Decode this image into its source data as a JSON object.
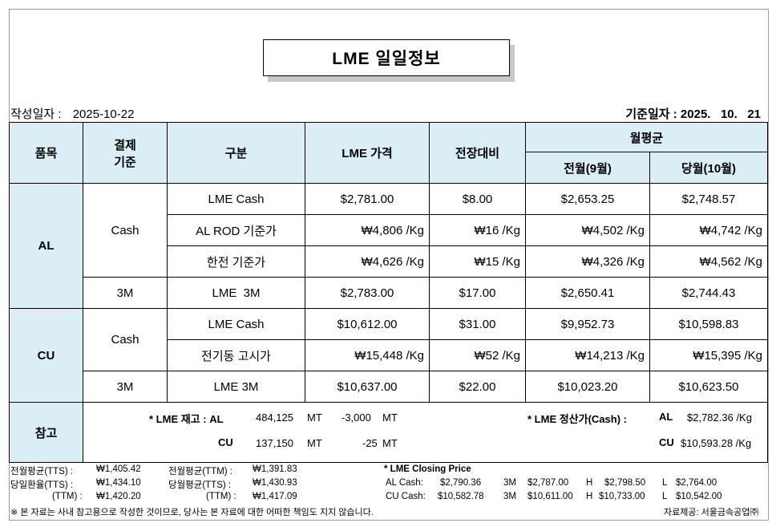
{
  "title": "LME 일일정보",
  "written_date_label": "작성일자 :",
  "written_date": "2025-10-22",
  "base_date_label": "기준일자 :",
  "base_date": "2025.   10.   21",
  "headers": {
    "item": "품목",
    "settle_line1": "결제",
    "settle_line2": "기준",
    "category": "구분",
    "lme_price": "LME 가격",
    "change": "전장대비",
    "monthly_avg": "월평균",
    "prev_month": "전월(9월)",
    "curr_month": "당월(10월)"
  },
  "al": {
    "item": "AL",
    "cash_label": "Cash",
    "m3_label": "3M",
    "rows": [
      {
        "name": "LME Cash",
        "price": "$2,781.00",
        "change": "$8.00",
        "prev": "$2,653.25",
        "curr": "$2,748.57"
      },
      {
        "name": "AL ROD 기준가",
        "price": "₩4,806 /Kg",
        "change": "₩16 /Kg",
        "prev": "₩4,502 /Kg",
        "curr": "₩4,742 /Kg"
      },
      {
        "name": "한전 기준가",
        "price": "₩4,626 /Kg",
        "change": "₩15 /Kg",
        "prev": "₩4,326 /Kg",
        "curr": "₩4,562 /Kg"
      },
      {
        "name": "LME  3M",
        "price": "$2,783.00",
        "change": "$17.00",
        "prev": "$2,650.41",
        "curr": "$2,744.43"
      }
    ]
  },
  "cu": {
    "item": "CU",
    "cash_label": "Cash",
    "m3_label": "3M",
    "rows": [
      {
        "name": "LME Cash",
        "price": "$10,612.00",
        "change": "$31.00",
        "prev": "$9,952.73",
        "curr": "$10,598.83"
      },
      {
        "name": "전기동 고시가",
        "price": "₩15,448 /Kg",
        "change": "₩52 /Kg",
        "prev": "₩14,213 /Kg",
        "curr": "₩15,395 /Kg"
      },
      {
        "name": "LME 3M",
        "price": "$10,637.00",
        "change": "$22.00",
        "prev": "$10,023.20",
        "curr": "$10,623.50"
      }
    ]
  },
  "reference": {
    "label": "참고",
    "stock_title": "* LME 재고 : AL",
    "al_stock": "484,125",
    "al_unit": "MT",
    "al_change": "-3,000",
    "al_change_unit": "MT",
    "cu_label": "CU",
    "cu_stock": "137,150",
    "cu_unit": "MT",
    "cu_change": "-25",
    "cu_change_unit": "MT",
    "settle_title": "* LME 정산가(Cash) :",
    "settle_al_label": "AL",
    "settle_al": "$2,782.36 /Kg",
    "settle_cu_label": "CU",
    "settle_cu": "$10,593.28 /Kg"
  },
  "footer": {
    "rows": [
      {
        "l1": "전월평균(TTS) :",
        "v1": "₩1,405.42",
        "l2": "전월평균(TTM) :",
        "v2": "₩1,391.83"
      },
      {
        "l1": "당일환율(TTS) :",
        "v1": "₩1,434.10",
        "l2": "당월평균(TTS) :",
        "v2": "₩1,430.93"
      },
      {
        "l1": "(TTM) :",
        "v1": "₩1,420.20",
        "l2": "(TTM) :",
        "v2": "₩1,417.09"
      }
    ],
    "closing_title": "* LME Closing Price",
    "al_cash_label": "AL  Cash:",
    "al_cash": "$2,790.36",
    "al_3m_label": "3M",
    "al_3m": "$2,787.00",
    "al_h_label": "H",
    "al_h": "$2,798.50",
    "al_l_label": "L",
    "al_l": "$2,764.00",
    "cu_cash_label": "CU  Cash:",
    "cu_cash": "$10,582.78",
    "cu_3m_label": "3M",
    "cu_3m": "$10,611.00",
    "cu_h_label": "H",
    "cu_h": "$10,733.00",
    "cu_l_label": "L",
    "cu_l": "$10,542.00",
    "disclaimer": "※ 본 자료는 사내 참고용으로 작성한 것이므로, 당사는 본 자료에 대한 어떠한 책임도 지지 않습니다.",
    "source": "자료제공: 서울금속공업㈜"
  }
}
